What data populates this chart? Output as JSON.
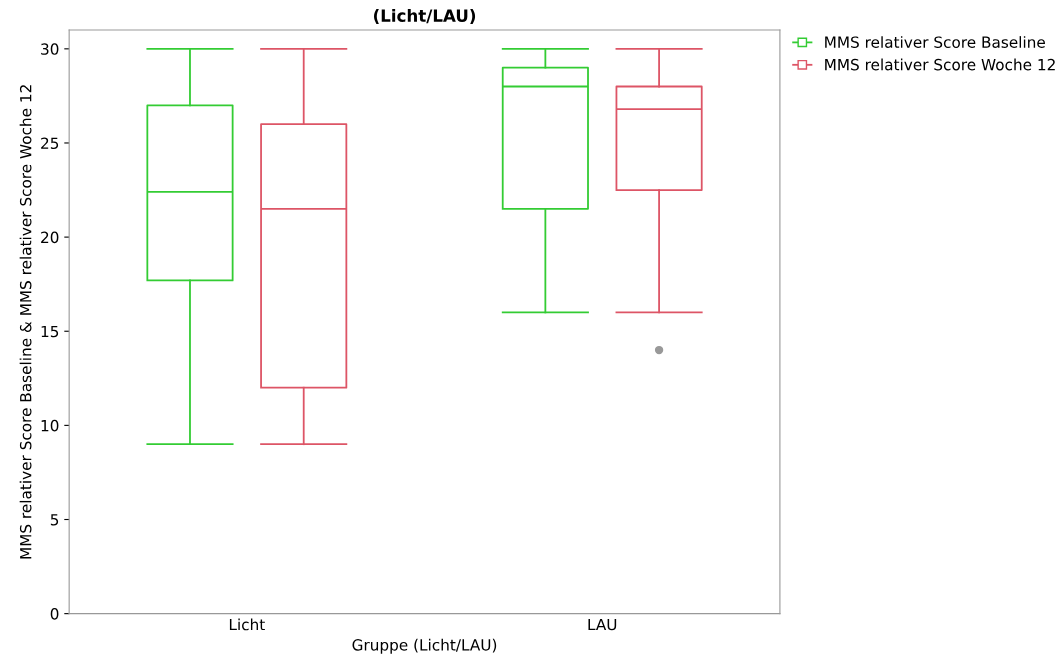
{
  "chart_data": {
    "type": "box",
    "title": "(Licht/LAU)",
    "xlabel": "Gruppe (Licht/LAU)",
    "ylabel": "MMS relativer Score Baseline & MMS relativer Score Woche 12",
    "categories": [
      "Licht",
      "LAU"
    ],
    "series": [
      {
        "name": "MMS relativer Score Baseline",
        "color": "#33cc33",
        "boxes": [
          {
            "low": 9,
            "q1": 17.7,
            "median": 22.4,
            "q3": 27,
            "high": 30
          },
          {
            "low": 16,
            "q1": 21.5,
            "median": 28,
            "q3": 29,
            "high": 30
          }
        ]
      },
      {
        "name": "MMS relativer Score Woche 12",
        "color": "#dd5566",
        "boxes": [
          {
            "low": 9,
            "q1": 12,
            "median": 21.5,
            "q3": 26,
            "high": 30
          },
          {
            "low": 16,
            "q1": 22.5,
            "median": 26.8,
            "q3": 28,
            "high": 30,
            "outliers": [
              14
            ]
          }
        ]
      }
    ],
    "ylim": [
      0,
      31
    ],
    "yticks": [
      0,
      5,
      10,
      15,
      20,
      25,
      30
    ],
    "grid": false,
    "legend": "top right"
  }
}
